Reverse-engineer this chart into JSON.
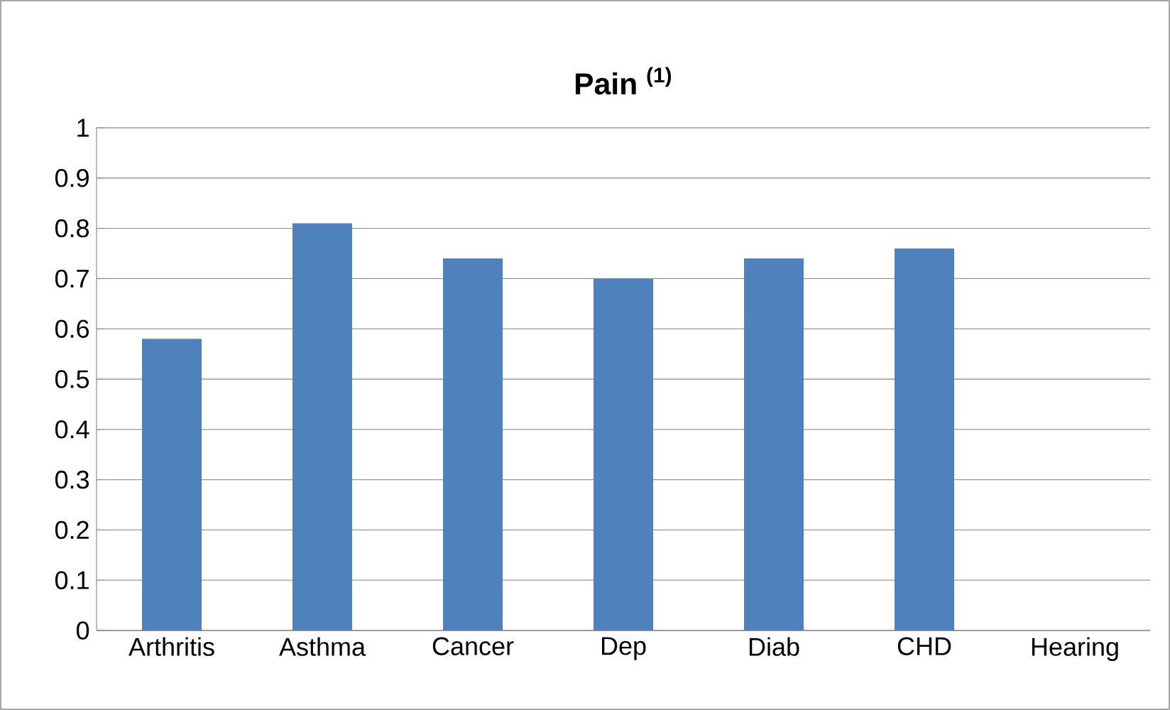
{
  "chart_data": {
    "type": "bar",
    "title": "Pain $^{(1)}$",
    "categories": [
      "Arthritis",
      "Asthma",
      "Cancer",
      "Dep",
      "Diab",
      "CHD",
      "Hearing"
    ],
    "values": [
      0.58,
      0.81,
      0.74,
      0.7,
      0.74,
      0.76,
      null
    ],
    "color": "#4f81bd",
    "ylim": [
      0,
      1
    ],
    "yticks": [
      0,
      0.1,
      0.2,
      0.3,
      0.4,
      0.5,
      0.6,
      0.7,
      0.8,
      0.9,
      1
    ],
    "grid": "y"
  }
}
